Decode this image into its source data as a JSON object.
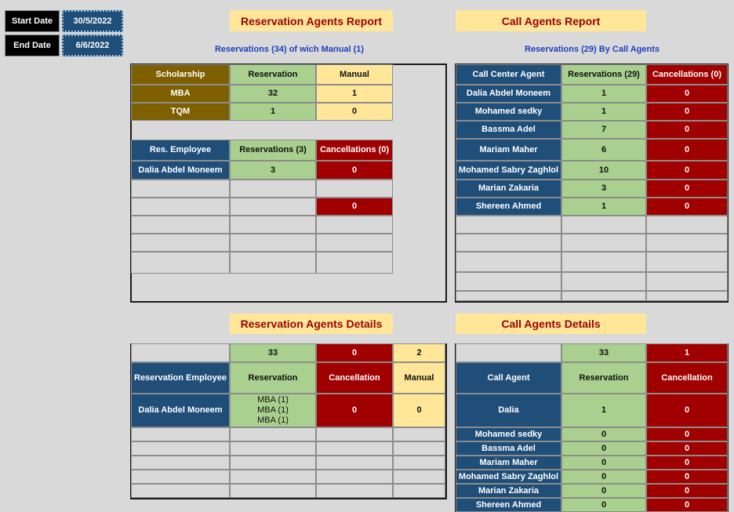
{
  "filters": {
    "start_label": "Start Date",
    "start_value": "30/5/2022",
    "end_label": "End Date",
    "end_value": "6/6/2022"
  },
  "reservation_report": {
    "title": "Reservation Agents Report",
    "subtitle": "Reservations (34) of wich Manual (1)",
    "scholarship_table": {
      "header": [
        "Scholarship",
        "Reservation",
        "Manual"
      ],
      "rows": [
        [
          "MBA",
          32,
          1
        ],
        [
          "TQM",
          1,
          0
        ]
      ]
    },
    "employee_table": {
      "header": [
        "Res. Employee",
        "Reservations (3)",
        "Cancellations (0)"
      ],
      "rows": [
        [
          "Dalia Abdel Moneem",
          3,
          0
        ],
        [
          null,
          null,
          0
        ]
      ]
    }
  },
  "call_report": {
    "title": "Call Agents Report",
    "subtitle": "Reservations (29) By Call Agents",
    "header": [
      "Call Center Agent",
      "Reservations (29)",
      "Cancellations (0)"
    ],
    "rows": [
      [
        "Dalia Abdel Moneem",
        1,
        0
      ],
      [
        "Mohamed sedky",
        1,
        0
      ],
      [
        "Bassma Adel",
        7,
        0
      ],
      [
        "Mariam Maher",
        6,
        0
      ],
      [
        "Mohamed Sabry Zaghlol",
        10,
        0
      ],
      [
        "Marian Zakaria",
        3,
        0
      ],
      [
        "Shereen Ahmed",
        1,
        0
      ]
    ]
  },
  "reservation_details": {
    "title": "Reservation Agents Details",
    "totals": [
      33,
      0,
      2
    ],
    "header": [
      "Reservation Employee",
      "Reservation",
      "Cancellation",
      "Manual"
    ],
    "rows": [
      [
        "Dalia Abdel Moneem",
        [
          "MBA (1)",
          "MBA (1)",
          "MBA (1)"
        ],
        0,
        0
      ]
    ]
  },
  "call_details": {
    "title": "Call Agents Details",
    "totals": [
      33,
      1
    ],
    "header": [
      "Call Agent",
      "Reservation",
      "Cancellation"
    ],
    "rows": [
      [
        "Dalia",
        1,
        0
      ],
      [
        "Mohamed sedky",
        0,
        0
      ],
      [
        "Bassma Adel",
        0,
        0
      ],
      [
        "Mariam Maher",
        0,
        0
      ],
      [
        "Mohamed Sabry Zaghlol",
        0,
        0
      ],
      [
        "Marian Zakaria",
        0,
        0
      ],
      [
        "Shereen Ahmed",
        0,
        0
      ]
    ]
  }
}
